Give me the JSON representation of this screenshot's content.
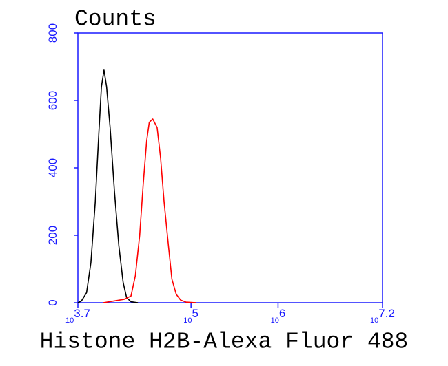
{
  "chart_data": {
    "type": "line",
    "title": "Counts",
    "x_label": "Histone H2B-Alexa Fluor 488",
    "xscale": "log",
    "log_base": 10,
    "xlim": [
      3.7,
      7.2
    ],
    "xticks": [
      3.7,
      5,
      6,
      7.2
    ],
    "ylim": [
      0,
      800
    ],
    "yticks": [
      0,
      200,
      400,
      600,
      800
    ],
    "axis_color": "#1a1aff",
    "series": [
      {
        "color": "#000000",
        "x": [
          3.7,
          3.74,
          3.8,
          3.85,
          3.9,
          3.94,
          3.97,
          4.0,
          4.03,
          4.07,
          4.12,
          4.17,
          4.22,
          4.26,
          4.31,
          4.39
        ],
        "values": [
          0,
          5,
          30,
          120,
          300,
          500,
          640,
          690,
          640,
          520,
          330,
          170,
          60,
          15,
          3,
          0
        ]
      },
      {
        "color": "#ff0000",
        "x": [
          3.99,
          4.11,
          4.23,
          4.31,
          4.36,
          4.41,
          4.45,
          4.49,
          4.52,
          4.56,
          4.61,
          4.65,
          4.69,
          4.74,
          4.78,
          4.83,
          4.88,
          4.94,
          5.06
        ],
        "values": [
          0,
          5,
          10,
          20,
          80,
          200,
          350,
          480,
          535,
          545,
          520,
          430,
          300,
          170,
          70,
          25,
          8,
          2,
          0
        ]
      }
    ]
  }
}
